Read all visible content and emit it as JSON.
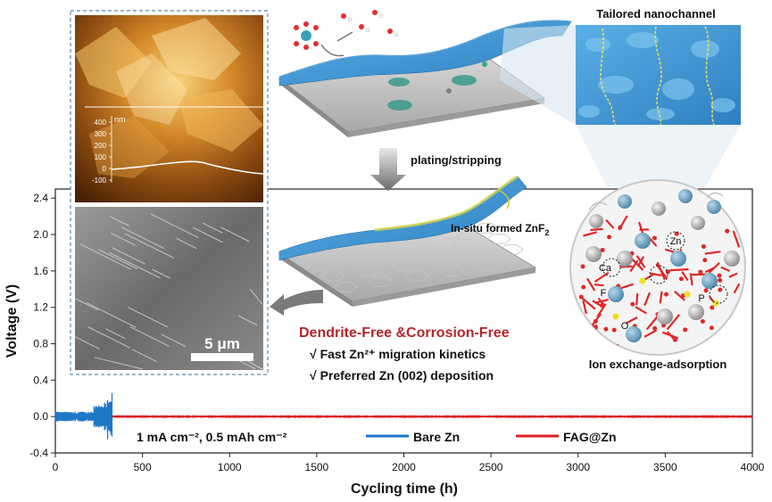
{
  "figure": {
    "nanochannel_title": "Tailored nanochannel",
    "plating_label": "plating/stripping",
    "znf2_label": "In-situ formed ZnF",
    "znf2_sub": "2",
    "ion_exchange_label": "Ion exchange-adsorption",
    "dendrite_headline": "Dendrite-Free &Corrosion-Free",
    "benefit_1": "√ Fast Zn²⁺ migration kinetics",
    "benefit_2": "√ Preferred Zn (002) deposition",
    "scale_bar": "5 μm",
    "afm_unit": "nm",
    "afm_ticks": [
      "400",
      "300",
      "200",
      "100",
      "0",
      "-100"
    ],
    "atom_labels": [
      "Zn",
      "Ca",
      "F",
      "P",
      "O"
    ],
    "condition_label": "1 mA cm⁻², 0.5 mAh cm⁻²",
    "colors": {
      "bare": "#1f77c8",
      "fag": "#e02020",
      "headline": "#b0282c",
      "check": "#1a8f4a",
      "nano_blue": "#4a9fd8"
    }
  },
  "chart_data": {
    "type": "line",
    "xlabel": "Cycling time (h)",
    "ylabel": "Voltage (V)",
    "xlim": [
      0,
      4000
    ],
    "ylim": [
      -0.4,
      2.5
    ],
    "x_ticks": [
      "0",
      "500",
      "1000",
      "1500",
      "2000",
      "2500",
      "3000",
      "3500",
      "4000"
    ],
    "y_ticks": [
      "-0.4",
      "0.0",
      "0.4",
      "0.8",
      "1.2",
      "1.6",
      "2.0",
      "2.4"
    ],
    "series": [
      {
        "name": "Bare Zn",
        "color": "#1f77c8",
        "x_end": 325,
        "amplitude": 0.045,
        "spike": 0.25
      },
      {
        "name": "FAG@Zn",
        "color": "#e02020",
        "x_start": 325,
        "x_end": 4000,
        "amplitude": 0.015
      }
    ]
  }
}
